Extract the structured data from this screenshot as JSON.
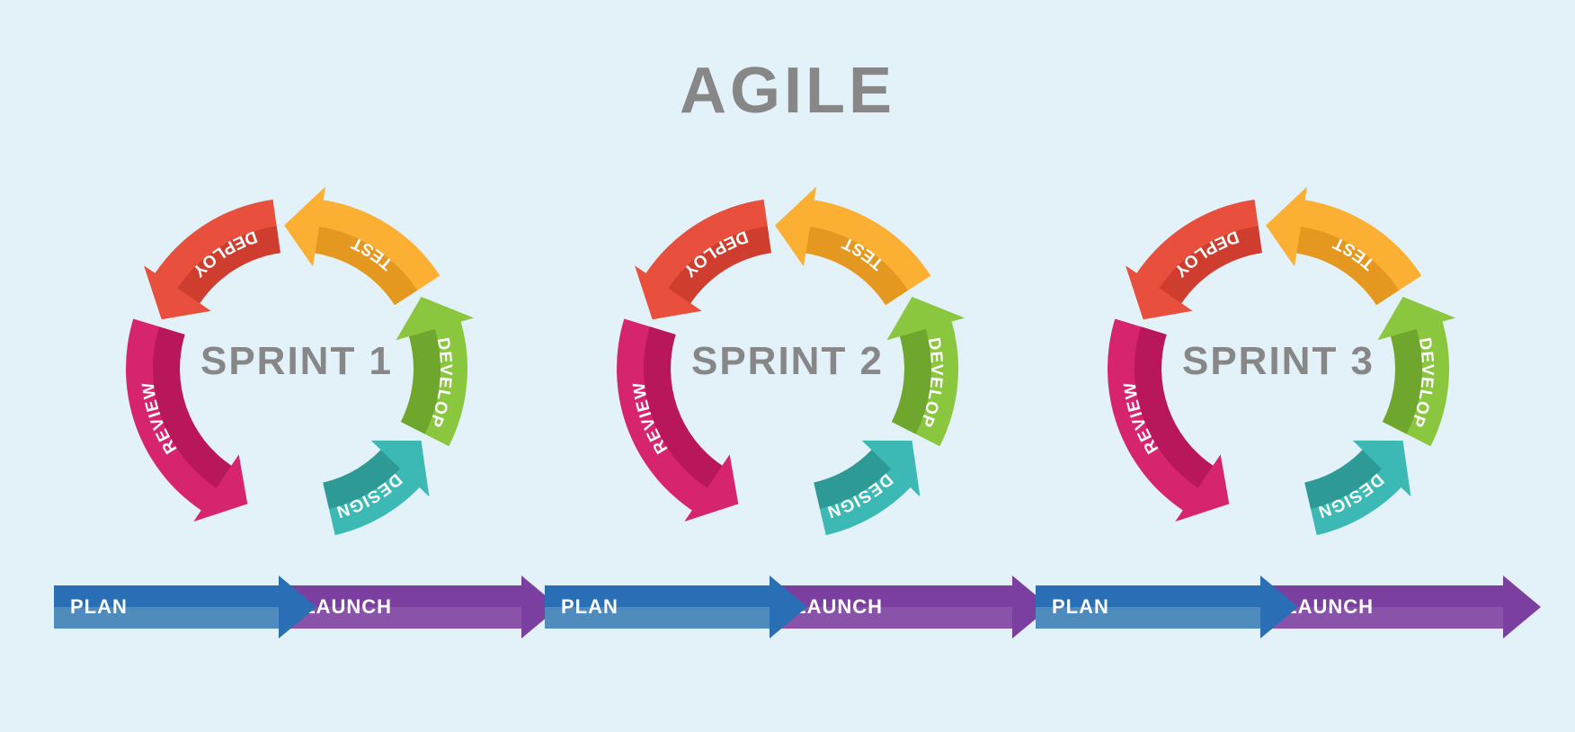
{
  "title": "AGILE",
  "title_fontsize": 72,
  "title_color": "#878787",
  "background_color": "#e3f1f8",
  "sprint_label_color": "#878787",
  "sprint_label_fontsize": 44,
  "segment_label_color": "#ffffff",
  "segment_label_fontsize": 19,
  "cycle": {
    "outer_radius": 190,
    "inner_radius": 130,
    "segments": [
      {
        "label": "DESIGN",
        "color": "#3cb9b5",
        "shade": "#2a9490",
        "start_deg": 80,
        "end_deg": 30
      },
      {
        "label": "DEVELOP",
        "color": "#8bc63f",
        "shade": "#6aa02a",
        "start_deg": 30,
        "end_deg": -30
      },
      {
        "label": "TEST",
        "color": "#fbb034",
        "shade": "#e0941c",
        "start_deg": -30,
        "end_deg": -95
      },
      {
        "label": "DEPLOY",
        "color": "#e94f3d",
        "shade": "#c93a2a",
        "start_deg": -95,
        "end_deg": -160
      },
      {
        "label": "REVIEW",
        "color": "#d6246e",
        "shade": "#b31558",
        "start_deg": -160,
        "end_deg": -250
      }
    ]
  },
  "bottom_arrows": {
    "plan": {
      "label": "PLAN",
      "color": "#2a6fb5",
      "shade": "#5a9fd6"
    },
    "launch": {
      "label": "LAUNCH",
      "color": "#7b3fa0",
      "shade": "#9b5fc0"
    }
  },
  "sprints": [
    {
      "center_label": "SPRINT 1"
    },
    {
      "center_label": "SPRINT 2"
    },
    {
      "center_label": "SPRINT 3"
    }
  ]
}
